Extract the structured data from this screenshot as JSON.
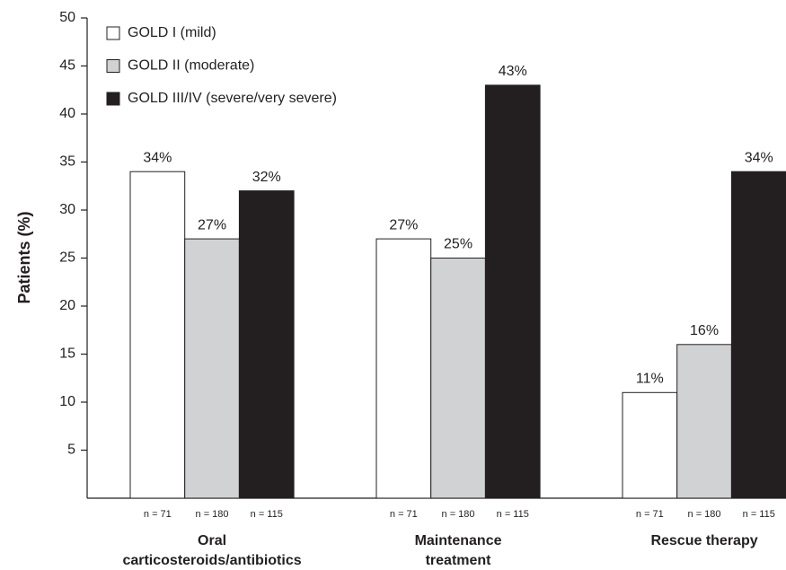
{
  "chart_data": {
    "type": "bar",
    "y_label": "Patients (%)",
    "categories": [
      [
        "Oral",
        "carticosteroids/antibiotics"
      ],
      [
        "Maintenance",
        "treatment"
      ],
      [
        "Rescue therapy"
      ]
    ],
    "series": [
      {
        "name": "GOLD I (mild)",
        "color": "#ffffff",
        "values": [
          34,
          27,
          11
        ],
        "value_labels": [
          "34%",
          "27%",
          "11%"
        ],
        "n_labels": [
          "n = 71",
          "n = 71",
          "n = 71"
        ]
      },
      {
        "name": "GOLD II (moderate)",
        "color": "#d1d2d4",
        "values": [
          27,
          25,
          16
        ],
        "value_labels": [
          "27%",
          "25%",
          "16%"
        ],
        "n_labels": [
          "n = 180",
          "n = 180",
          "n = 180"
        ]
      },
      {
        "name": "GOLD III/IV (severe/very severe)",
        "color": "#231f20",
        "values": [
          32,
          43,
          34
        ],
        "value_labels": [
          "32%",
          "43%",
          "34%"
        ],
        "n_labels": [
          "n = 115",
          "n = 115",
          "n = 115"
        ]
      }
    ],
    "ylim": [
      0,
      50
    ],
    "yticks": [
      5,
      10,
      15,
      20,
      25,
      30,
      35,
      40,
      45,
      50
    ],
    "legend": "upper-left"
  }
}
